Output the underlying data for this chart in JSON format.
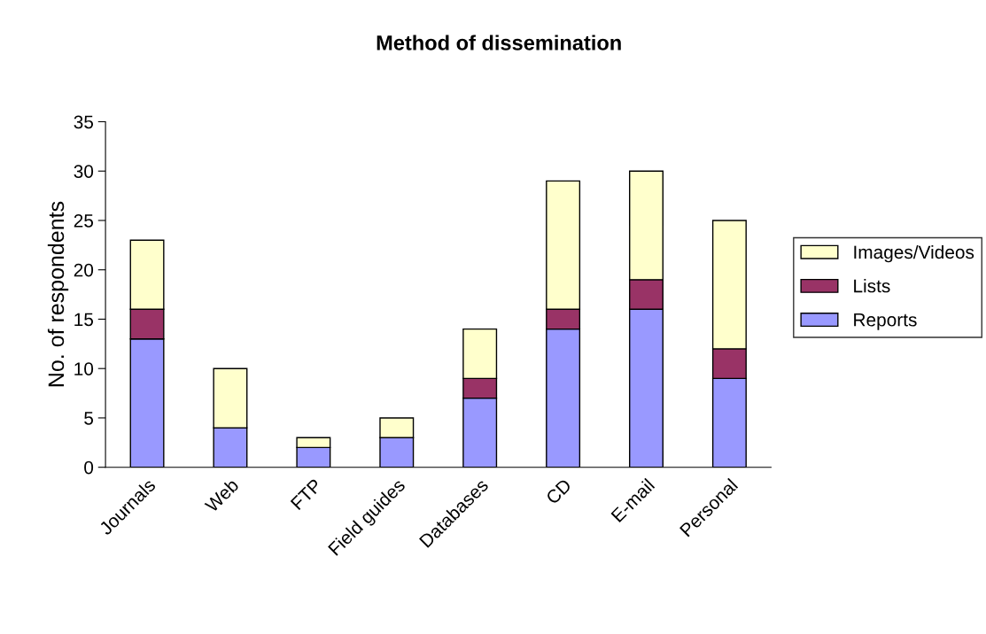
{
  "chart_data": {
    "type": "bar",
    "title": "Method of dissemination",
    "ylabel": "No. of respondents",
    "categories": [
      "Journals",
      "Web",
      "FTP",
      "Field guides",
      "Databases",
      "CD",
      "E-mail",
      "Personal"
    ],
    "stacked": true,
    "series": [
      {
        "name": "Reports",
        "color": "#9999ff",
        "values": [
          13,
          4,
          2,
          3,
          7,
          14,
          16,
          9
        ]
      },
      {
        "name": "Lists",
        "color": "#993366",
        "values": [
          3,
          0,
          0,
          0,
          2,
          2,
          3,
          3
        ]
      },
      {
        "name": "Images/Videos",
        "color": "#ffffcc",
        "values": [
          7,
          6,
          1,
          2,
          5,
          13,
          11,
          13
        ]
      }
    ],
    "ylim": [
      0,
      35
    ],
    "yticks": [
      0,
      5,
      10,
      15,
      20,
      25,
      30,
      35
    ],
    "grid": false,
    "legend": "right"
  }
}
